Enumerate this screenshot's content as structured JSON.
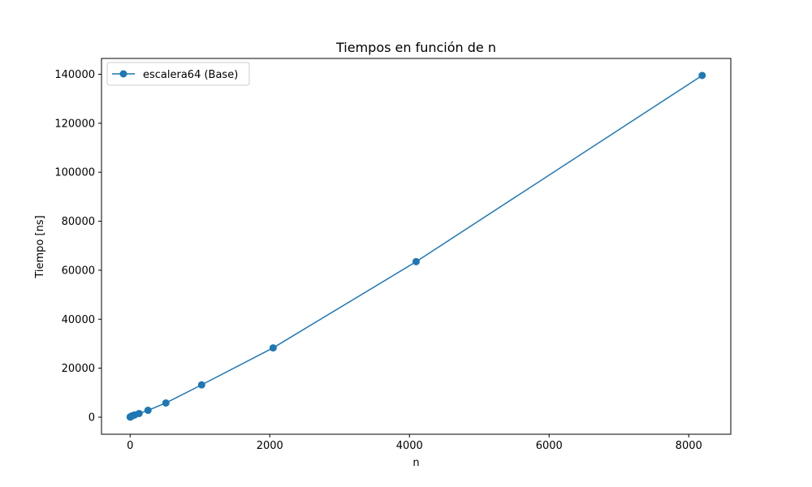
{
  "chart_data": {
    "type": "line",
    "title": "Tiempos en función de n",
    "xlabel": "n",
    "ylabel": "Tiempo [ns]",
    "xlim": [
      -410,
      8602
    ],
    "ylim": [
      -6966,
      146456
    ],
    "xticks": [
      0,
      2000,
      4000,
      6000,
      8000
    ],
    "yticks": [
      0,
      20000,
      40000,
      60000,
      80000,
      100000,
      120000,
      140000
    ],
    "grid": false,
    "legend_position": "upper left",
    "series": [
      {
        "name": "escalera64 (Base)",
        "color": "#1f77b4",
        "marker": "circle",
        "x": [
          1,
          2,
          4,
          8,
          16,
          32,
          64,
          128,
          256,
          512,
          1024,
          2048,
          4096,
          8192
        ],
        "y": [
          50,
          80,
          120,
          200,
          350,
          600,
          900,
          1500,
          2800,
          5800,
          13200,
          28300,
          63500,
          139500
        ]
      }
    ]
  }
}
